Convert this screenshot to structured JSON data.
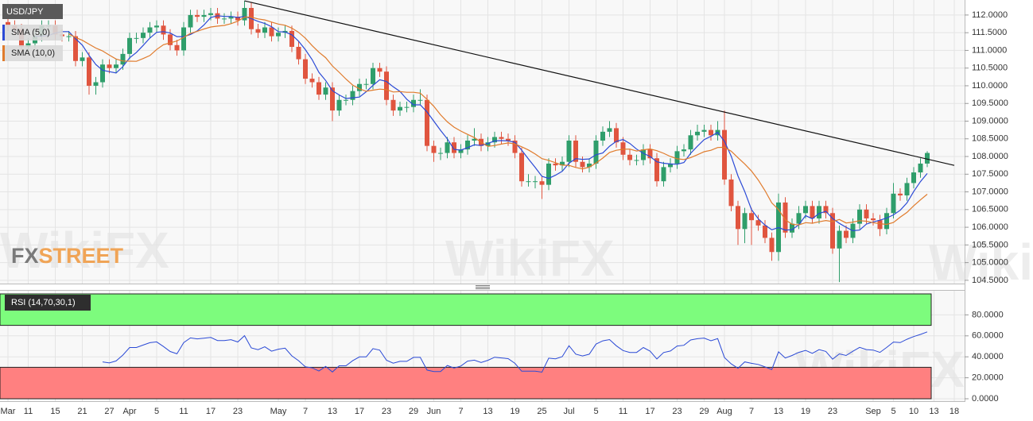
{
  "chart_data": {
    "type": "candlestick",
    "title": "USD/JPY",
    "brand": [
      "FX",
      "STREET"
    ],
    "watermark": "WikiFX",
    "categories": [
      "Mar",
      null,
      null,
      "11",
      null,
      null,
      null,
      "15",
      null,
      null,
      null,
      "21",
      null,
      null,
      null,
      "27",
      null,
      null,
      "Apr",
      null,
      null,
      null,
      "5",
      null,
      null,
      null,
      "11",
      null,
      null,
      null,
      "17",
      null,
      null,
      null,
      "23",
      null,
      null,
      null,
      null,
      null,
      "May",
      null,
      null,
      null,
      "7",
      null,
      null,
      null,
      "13",
      null,
      null,
      null,
      "17",
      null,
      null,
      null,
      "23",
      null,
      null,
      null,
      "29",
      null,
      null,
      "Jun",
      null,
      null,
      null,
      "7",
      null,
      null,
      null,
      "13",
      null,
      null,
      null,
      "19",
      null,
      null,
      null,
      "25",
      null,
      null,
      null,
      "Jul",
      null,
      null,
      null,
      "5",
      null,
      null,
      null,
      "11",
      null,
      null,
      null,
      "17",
      null,
      null,
      null,
      "23",
      null,
      null,
      null,
      "29",
      null,
      null,
      "Aug",
      null,
      null,
      null,
      "7",
      null,
      null,
      null,
      "13",
      null,
      null,
      null,
      "19",
      null,
      null,
      null,
      "23",
      null,
      null,
      null,
      null,
      null,
      "Sep",
      null,
      null,
      "5",
      null,
      null,
      "10",
      null,
      null,
      "13",
      null,
      null,
      "18"
    ],
    "up_color": "#2f9e6b",
    "down_color": "#e0553f",
    "ohlc": [
      [
        111.8,
        111.95,
        111.55,
        111.7
      ],
      [
        111.7,
        111.85,
        111.45,
        111.6
      ],
      [
        111.6,
        111.75,
        110.95,
        111.1
      ],
      [
        111.1,
        111.35,
        110.95,
        111.2
      ],
      [
        111.2,
        111.55,
        111.05,
        111.4
      ],
      [
        111.4,
        111.85,
        111.25,
        111.7
      ],
      [
        111.7,
        111.85,
        111.55,
        111.7
      ],
      [
        111.7,
        111.85,
        111.3,
        111.45
      ],
      [
        111.45,
        111.6,
        111.25,
        111.4
      ],
      [
        111.4,
        111.55,
        111.25,
        111.4
      ],
      [
        111.4,
        111.55,
        110.55,
        110.7
      ],
      [
        110.7,
        110.95,
        110.55,
        110.8
      ],
      [
        110.8,
        110.95,
        109.75,
        110.0
      ],
      [
        110.0,
        110.25,
        109.75,
        110.1
      ],
      [
        110.1,
        110.75,
        109.95,
        110.6
      ],
      [
        110.6,
        110.75,
        110.35,
        110.5
      ],
      [
        110.5,
        110.75,
        110.35,
        110.6
      ],
      [
        110.6,
        111.05,
        110.45,
        110.9
      ],
      [
        110.9,
        111.5,
        110.75,
        111.35
      ],
      [
        111.35,
        111.5,
        111.2,
        111.35
      ],
      [
        111.35,
        111.65,
        111.2,
        111.5
      ],
      [
        111.5,
        111.8,
        111.35,
        111.65
      ],
      [
        111.65,
        111.85,
        111.5,
        111.7
      ],
      [
        111.7,
        111.85,
        111.3,
        111.45
      ],
      [
        111.45,
        111.6,
        111.0,
        111.15
      ],
      [
        111.15,
        111.3,
        110.85,
        111.0
      ],
      [
        111.0,
        111.8,
        110.85,
        111.65
      ],
      [
        111.65,
        112.15,
        111.5,
        112.0
      ],
      [
        112.0,
        112.15,
        111.8,
        111.95
      ],
      [
        111.95,
        112.15,
        111.8,
        112.0
      ],
      [
        112.0,
        112.2,
        111.85,
        112.05
      ],
      [
        112.05,
        112.2,
        111.75,
        111.9
      ],
      [
        111.9,
        112.05,
        111.75,
        111.9
      ],
      [
        111.9,
        112.1,
        111.75,
        111.95
      ],
      [
        111.95,
        112.1,
        111.7,
        111.85
      ],
      [
        111.85,
        112.4,
        111.7,
        112.2
      ],
      [
        112.2,
        112.35,
        111.45,
        111.6
      ],
      [
        111.6,
        111.75,
        111.35,
        111.5
      ],
      [
        111.5,
        111.8,
        111.35,
        111.65
      ],
      [
        111.65,
        111.8,
        111.25,
        111.4
      ],
      [
        111.4,
        111.65,
        111.25,
        111.5
      ],
      [
        111.5,
        111.7,
        111.35,
        111.55
      ],
      [
        111.55,
        111.7,
        110.95,
        111.1
      ],
      [
        111.1,
        111.25,
        110.6,
        110.75
      ],
      [
        110.75,
        110.9,
        110.05,
        110.2
      ],
      [
        110.2,
        110.35,
        109.95,
        110.1
      ],
      [
        110.1,
        110.25,
        109.6,
        109.75
      ],
      [
        109.75,
        110.1,
        109.6,
        109.95
      ],
      [
        109.95,
        110.1,
        109.0,
        109.3
      ],
      [
        109.3,
        109.75,
        109.15,
        109.6
      ],
      [
        109.6,
        109.75,
        109.45,
        109.6
      ],
      [
        109.6,
        110.0,
        109.45,
        109.85
      ],
      [
        109.85,
        110.2,
        109.7,
        110.05
      ],
      [
        110.05,
        110.2,
        109.9,
        110.05
      ],
      [
        110.05,
        110.65,
        109.9,
        110.5
      ],
      [
        110.5,
        110.65,
        110.25,
        110.4
      ],
      [
        110.4,
        110.55,
        109.45,
        109.6
      ],
      [
        109.6,
        109.75,
        109.15,
        109.3
      ],
      [
        109.3,
        109.55,
        109.15,
        109.4
      ],
      [
        109.4,
        109.55,
        109.25,
        109.4
      ],
      [
        109.4,
        109.75,
        109.25,
        109.6
      ],
      [
        109.6,
        109.9,
        109.45,
        109.6
      ],
      [
        109.6,
        109.75,
        108.15,
        108.3
      ],
      [
        108.3,
        108.45,
        107.85,
        108.1
      ],
      [
        108.1,
        108.25,
        107.9,
        108.1
      ],
      [
        108.1,
        108.55,
        107.95,
        108.4
      ],
      [
        108.4,
        108.55,
        107.95,
        108.1
      ],
      [
        108.1,
        108.35,
        107.95,
        108.2
      ],
      [
        108.2,
        108.6,
        108.05,
        108.45
      ],
      [
        108.45,
        108.8,
        108.3,
        108.5
      ],
      [
        108.5,
        108.65,
        108.15,
        108.3
      ],
      [
        108.3,
        108.55,
        108.15,
        108.4
      ],
      [
        108.4,
        108.7,
        108.25,
        108.55
      ],
      [
        108.55,
        108.7,
        108.35,
        108.5
      ],
      [
        108.5,
        108.65,
        108.3,
        108.45
      ],
      [
        108.45,
        108.6,
        107.95,
        108.1
      ],
      [
        108.1,
        108.25,
        107.15,
        107.3
      ],
      [
        107.3,
        107.5,
        107.15,
        107.3
      ],
      [
        107.3,
        107.45,
        107.1,
        107.3
      ],
      [
        107.3,
        107.45,
        106.8,
        107.2
      ],
      [
        107.2,
        107.95,
        107.05,
        107.8
      ],
      [
        107.8,
        107.95,
        107.6,
        107.75
      ],
      [
        107.75,
        108.0,
        107.6,
        107.85
      ],
      [
        107.85,
        108.6,
        107.7,
        108.45
      ],
      [
        108.45,
        108.6,
        107.7,
        107.85
      ],
      [
        107.85,
        108.0,
        107.55,
        107.7
      ],
      [
        107.7,
        107.95,
        107.55,
        107.8
      ],
      [
        107.8,
        108.6,
        107.65,
        108.45
      ],
      [
        108.45,
        108.85,
        108.3,
        108.7
      ],
      [
        108.7,
        109.0,
        108.55,
        108.8
      ],
      [
        108.8,
        108.95,
        108.25,
        108.4
      ],
      [
        108.4,
        108.55,
        107.9,
        108.05
      ],
      [
        108.05,
        108.2,
        107.75,
        107.9
      ],
      [
        107.9,
        108.05,
        107.75,
        107.9
      ],
      [
        107.9,
        108.35,
        107.75,
        108.2
      ],
      [
        108.2,
        108.35,
        107.8,
        107.95
      ],
      [
        107.95,
        108.1,
        107.15,
        107.3
      ],
      [
        107.3,
        107.85,
        107.15,
        107.7
      ],
      [
        107.7,
        107.95,
        107.55,
        107.8
      ],
      [
        107.8,
        108.3,
        107.65,
        108.15
      ],
      [
        108.15,
        108.35,
        108.0,
        108.2
      ],
      [
        108.2,
        108.75,
        108.05,
        108.6
      ],
      [
        108.6,
        108.9,
        108.45,
        108.7
      ],
      [
        108.7,
        108.9,
        108.55,
        108.75
      ],
      [
        108.75,
        108.9,
        108.45,
        108.6
      ],
      [
        108.6,
        109.0,
        108.45,
        108.75
      ],
      [
        108.75,
        109.3,
        107.2,
        107.35
      ],
      [
        107.35,
        107.5,
        106.45,
        106.6
      ],
      [
        106.6,
        106.75,
        105.5,
        105.95
      ],
      [
        105.95,
        106.55,
        105.55,
        106.4
      ],
      [
        106.4,
        106.55,
        105.5,
        106.2
      ],
      [
        106.2,
        106.35,
        105.9,
        106.05
      ],
      [
        106.05,
        106.2,
        105.55,
        105.7
      ],
      [
        105.7,
        105.85,
        105.05,
        105.3
      ],
      [
        105.3,
        106.95,
        105.05,
        106.7
      ],
      [
        106.7,
        106.85,
        105.7,
        105.85
      ],
      [
        105.85,
        106.25,
        105.7,
        106.1
      ],
      [
        106.1,
        106.6,
        105.95,
        106.4
      ],
      [
        106.4,
        106.75,
        106.25,
        106.6
      ],
      [
        106.6,
        106.75,
        106.1,
        106.25
      ],
      [
        106.25,
        106.75,
        106.1,
        106.6
      ],
      [
        106.6,
        106.75,
        106.25,
        106.4
      ],
      [
        106.4,
        106.55,
        105.25,
        105.4
      ],
      [
        105.4,
        106.05,
        104.45,
        105.9
      ],
      [
        105.9,
        106.05,
        105.55,
        105.7
      ],
      [
        105.7,
        106.25,
        105.55,
        106.1
      ],
      [
        106.1,
        106.65,
        105.95,
        106.5
      ],
      [
        106.5,
        106.65,
        106.1,
        106.25
      ],
      [
        106.25,
        106.4,
        106.05,
        106.2
      ],
      [
        106.2,
        106.35,
        105.75,
        105.95
      ],
      [
        105.95,
        106.55,
        105.8,
        106.4
      ],
      [
        106.4,
        107.25,
        106.25,
        106.95
      ],
      [
        106.95,
        107.1,
        106.75,
        106.9
      ],
      [
        106.9,
        107.4,
        106.75,
        107.25
      ],
      [
        107.25,
        107.7,
        107.1,
        107.55
      ],
      [
        107.55,
        107.95,
        107.4,
        107.8
      ],
      [
        107.8,
        108.15,
        107.7,
        108.1
      ],
      null,
      null,
      null,
      null
    ],
    "indicators": [
      {
        "name": "SMA (5,0)",
        "period": 5,
        "color": "#2b4ad6"
      },
      {
        "name": "SMA (10,0)",
        "period": 10,
        "color": "#e07b2c"
      }
    ],
    "trendline": {
      "x": [
        35,
        140
      ],
      "y": [
        112.4,
        107.75
      ],
      "color": "#111111"
    },
    "ylim": [
      104.43,
      112.2
    ],
    "yticks": [
      {
        "value": 104.5,
        "label": "104.5000"
      },
      {
        "value": 105,
        "label": "105.0000"
      },
      {
        "value": 105.5,
        "label": "105.5000"
      },
      {
        "value": 106,
        "label": "106.0000"
      },
      {
        "value": 106.5,
        "label": "106.5000"
      },
      {
        "value": 107,
        "label": "107.0000"
      },
      {
        "value": 107.5,
        "label": "107.5000"
      },
      {
        "value": 108,
        "label": "108.0000"
      },
      {
        "value": 108.5,
        "label": "108.5000"
      },
      {
        "value": 109,
        "label": "109.0000"
      },
      {
        "value": 109.5,
        "label": "109.5000"
      },
      {
        "value": 110,
        "label": "110.0000"
      },
      {
        "value": 110.5,
        "label": "110.5000"
      },
      {
        "value": 111,
        "label": "111.0000"
      },
      {
        "value": 111.5,
        "label": "111.5000"
      },
      {
        "value": 112,
        "label": "112.0000"
      }
    ],
    "grid": true,
    "rsi": {
      "name": "RSI (14,70,30,1)",
      "period": 14,
      "upper": 70,
      "lower": 30,
      "color": "#2b4ad6",
      "upper_color": "#7dfc7d",
      "lower_color": "#ff8080",
      "ylim": [
        0,
        100
      ],
      "yticks": [
        {
          "value": 0,
          "label": "0.0000"
        },
        {
          "value": 20,
          "label": "20.0000"
        },
        {
          "value": 40,
          "label": "40.0000"
        },
        {
          "value": 60,
          "label": "60.0000"
        },
        {
          "value": 80,
          "label": "80.0000"
        }
      ]
    }
  }
}
